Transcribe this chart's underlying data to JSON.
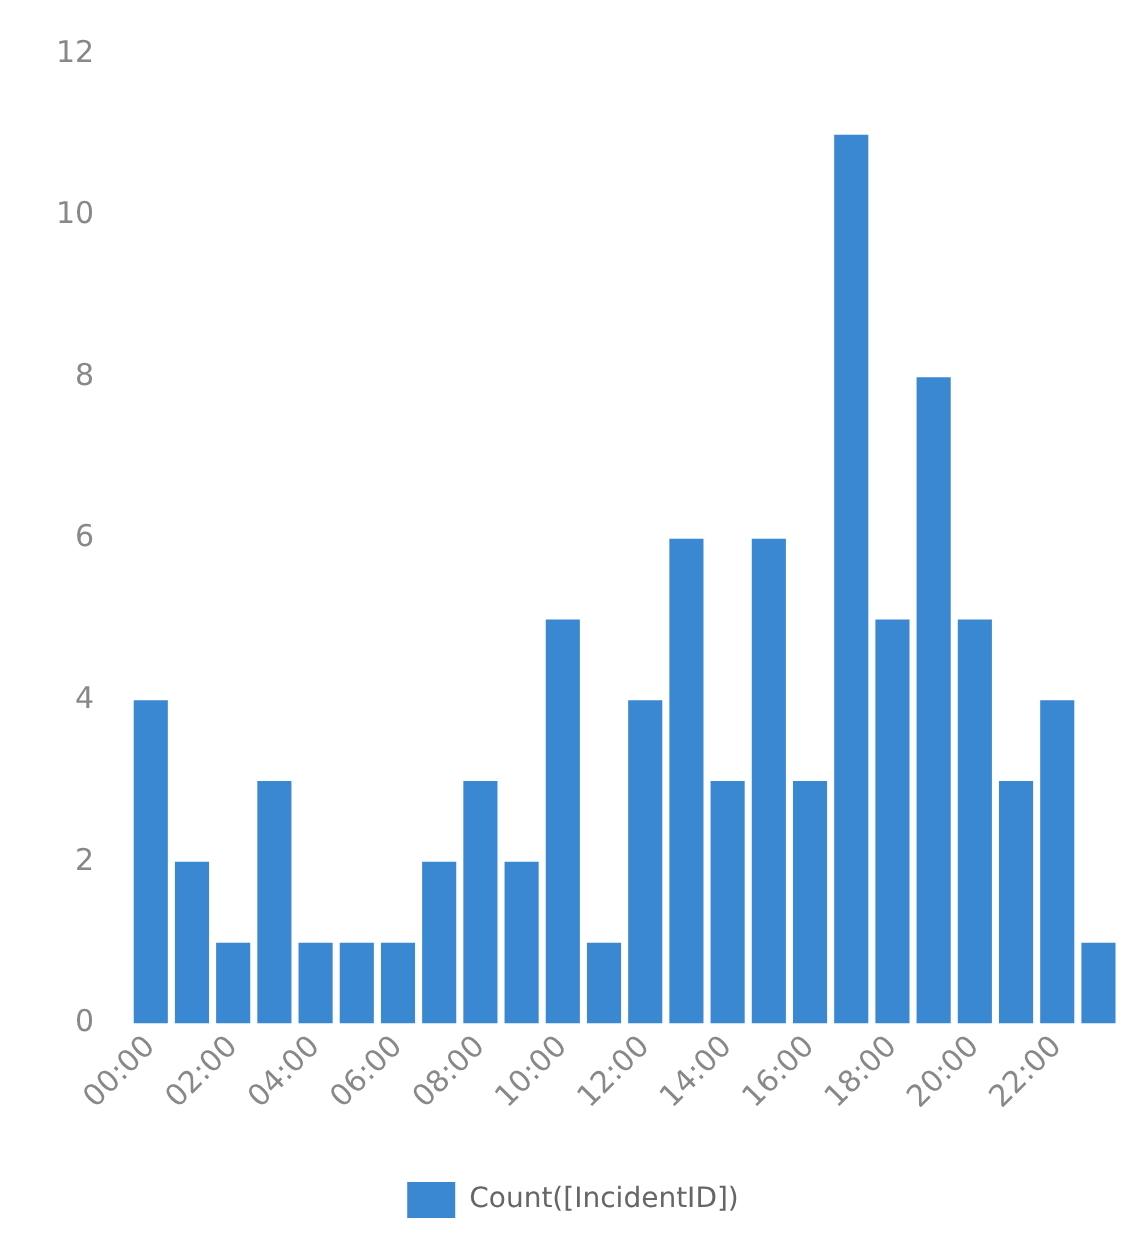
{
  "chart_data": {
    "type": "bar",
    "categories": [
      "00:00",
      null,
      "02:00",
      null,
      "04:00",
      null,
      "06:00",
      null,
      "08:00",
      null,
      "10:00",
      null,
      "12:00",
      null,
      "14:00",
      null,
      "16:00",
      null,
      "18:00",
      null,
      "20:00",
      null,
      "22:00",
      null
    ],
    "series": [
      {
        "name": "Count([IncidentID])",
        "color": "#3a87d2",
        "values": [
          4,
          2,
          1,
          3,
          1,
          1,
          1,
          2,
          3,
          2,
          5,
          1,
          4,
          6,
          3,
          6,
          3,
          11,
          5,
          8,
          5,
          3,
          4,
          1
        ]
      }
    ],
    "ylim": [
      0,
      12
    ],
    "yticks": [
      0,
      2,
      4,
      6,
      8,
      10,
      12
    ],
    "grid": false,
    "legend": "bottom"
  }
}
